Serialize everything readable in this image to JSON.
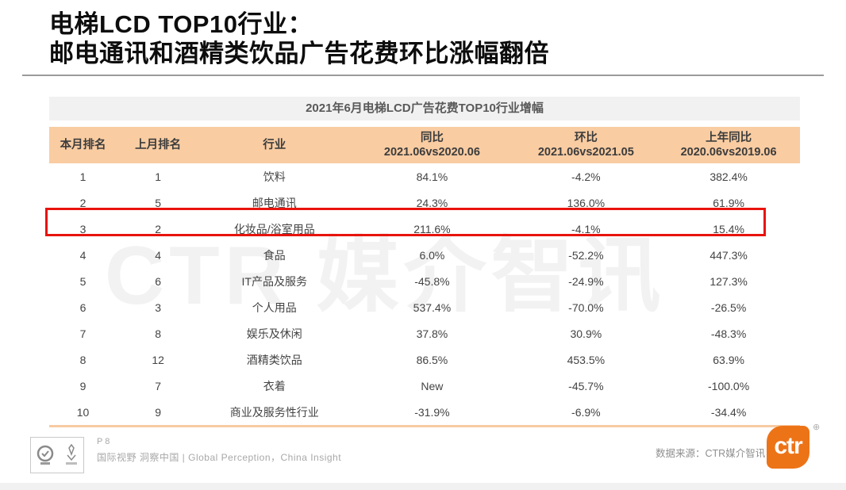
{
  "slide": {
    "title_line1": "电梯LCD TOP10行业：",
    "title_line2": "邮电通讯和酒精类饮品广告花费环比涨幅翻倍"
  },
  "table": {
    "caption": "2021年6月电梯LCD广告花费TOP10行业增幅",
    "columns": [
      {
        "label": "本月排名",
        "sub": ""
      },
      {
        "label": "上月排名",
        "sub": ""
      },
      {
        "label": "行业",
        "sub": ""
      },
      {
        "label": "同比",
        "sub": "2021.06vs2020.06"
      },
      {
        "label": "环比",
        "sub": "2021.06vs2021.05"
      },
      {
        "label": "上年同比",
        "sub": "2020.06vs2019.06"
      }
    ],
    "rows": [
      {
        "rank": "1",
        "prev": "1",
        "industry": "饮料",
        "yoy": "84.1%",
        "mom": "-4.2%",
        "prev_yoy": "382.4%"
      },
      {
        "rank": "2",
        "prev": "5",
        "industry": "邮电通讯",
        "yoy": "24.3%",
        "mom": "136.0%",
        "prev_yoy": "61.9%"
      },
      {
        "rank": "3",
        "prev": "2",
        "industry": "化妆品/浴室用品",
        "yoy": "211.6%",
        "mom": "-4.1%",
        "prev_yoy": "15.4%"
      },
      {
        "rank": "4",
        "prev": "4",
        "industry": "食品",
        "yoy": "6.0%",
        "mom": "-52.2%",
        "prev_yoy": "447.3%"
      },
      {
        "rank": "5",
        "prev": "6",
        "industry": "IT产品及服务",
        "yoy": "-45.8%",
        "mom": "-24.9%",
        "prev_yoy": "127.3%"
      },
      {
        "rank": "6",
        "prev": "3",
        "industry": "个人用品",
        "yoy": "537.4%",
        "mom": "-70.0%",
        "prev_yoy": "-26.5%"
      },
      {
        "rank": "7",
        "prev": "8",
        "industry": "娱乐及休闲",
        "yoy": "37.8%",
        "mom": "30.9%",
        "prev_yoy": "-48.3%"
      },
      {
        "rank": "8",
        "prev": "12",
        "industry": "酒精类饮品",
        "yoy": "86.5%",
        "mom": "453.5%",
        "prev_yoy": "63.9%"
      },
      {
        "rank": "9",
        "prev": "7",
        "industry": "衣着",
        "yoy": "New",
        "mom": "-45.7%",
        "prev_yoy": "-100.0%"
      },
      {
        "rank": "10",
        "prev": "9",
        "industry": "商业及服务性行业",
        "yoy": "-31.9%",
        "mom": "-6.9%",
        "prev_yoy": "-34.4%"
      }
    ],
    "highlight": {
      "row_index": 2
    }
  },
  "watermark": "CTR 媒介智讯",
  "footer": {
    "page": "P 8",
    "tagline": "国际视野 洞察中国 | Global Perception，China Insight",
    "source": "数据来源：CTR媒介智讯",
    "logo_text": "ctr",
    "logo_mark": "⊕"
  },
  "colors": {
    "header_bg": "#F9CCA2",
    "caption_bg": "#F1F1F1",
    "highlight_red": "#E8140C",
    "table_bottom_line": "#F7CBA3",
    "brand_orange": "#ED7317",
    "watermark_gray": "#F2F2F2",
    "title_black": "#0D0D0D",
    "body_text_gray": "#434343",
    "footer_gray": "#A8A8A8"
  }
}
